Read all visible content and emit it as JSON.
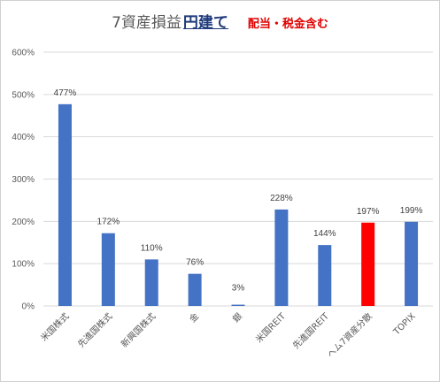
{
  "title": {
    "main": "7資産損益",
    "emphasis": "円建て",
    "note": "配当・税金含む"
  },
  "chart_data": {
    "type": "bar",
    "categories": [
      "米国株式",
      "先進国株式",
      "新興国株式",
      "金",
      "銀",
      "米国REIT",
      "先進国REIT",
      "ヘム7資産分散",
      "TOPIX"
    ],
    "values": [
      477,
      172,
      110,
      76,
      3,
      228,
      144,
      197,
      199
    ],
    "data_labels": [
      "477%",
      "172%",
      "110%",
      "76%",
      "3%",
      "228%",
      "144%",
      "197%",
      "199%"
    ],
    "y_ticks": [
      "0%",
      "100%",
      "200%",
      "300%",
      "400%",
      "500%",
      "600%"
    ],
    "ylim": [
      0,
      600
    ],
    "unit": "%",
    "grid": true,
    "legend": "none",
    "colors": {
      "default": "#4472c4",
      "highlight": "#ff0000",
      "highlight_category": "ヘム7資産分散",
      "grid": "#d9d9d9",
      "text": "#595959"
    }
  }
}
